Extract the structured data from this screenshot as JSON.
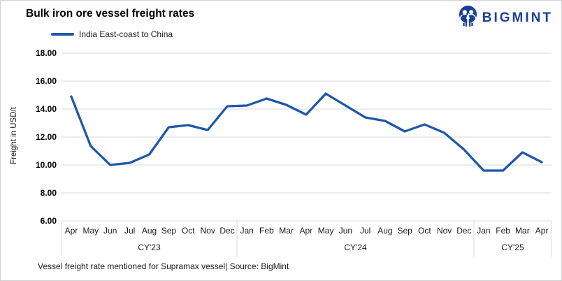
{
  "header": {
    "logo_text": "BIGMINT",
    "logo_color": "#1B3F95"
  },
  "chart_data": {
    "type": "line",
    "title": "Bulk iron ore vessel freight rates",
    "ylabel": "Freight in USD/t",
    "ylim": [
      6,
      18
    ],
    "ytick_step": 2,
    "ytick_labels": [
      "18.00",
      "16.00",
      "14.00",
      "12.00",
      "10.00",
      "8.00",
      "6.00"
    ],
    "grid": "horizontal-only",
    "legend_position": "top-left",
    "line_color": "#1F57A8",
    "grid_color": "#D9D9D9",
    "x_groups": [
      {
        "label": "CY'23",
        "months": [
          "Apr",
          "May",
          "Jun",
          "Jul",
          "Aug",
          "Sep",
          "Oct",
          "Nov",
          "Dec"
        ]
      },
      {
        "label": "CY'24",
        "months": [
          "Jan",
          "Feb",
          "Mar",
          "Apr",
          "May",
          "Jun",
          "Jul",
          "Aug",
          "Sep",
          "Oct",
          "Nov",
          "Dec"
        ]
      },
      {
        "label": "CY'25",
        "months": [
          "Jan",
          "Feb",
          "Mar",
          "Apr"
        ]
      }
    ],
    "series": [
      {
        "name": "India East-coast to China",
        "values": [
          14.9,
          11.35,
          10.0,
          10.15,
          10.75,
          12.7,
          12.85,
          12.5,
          14.2,
          14.25,
          14.75,
          14.3,
          13.6,
          15.1,
          14.25,
          13.4,
          13.15,
          12.4,
          12.9,
          12.3,
          11.1,
          9.6,
          9.6,
          10.9,
          10.2
        ]
      }
    ]
  },
  "footer": {
    "note": "Vessel freight rate mentioned for Supramax vessel| Source: BigMint"
  }
}
